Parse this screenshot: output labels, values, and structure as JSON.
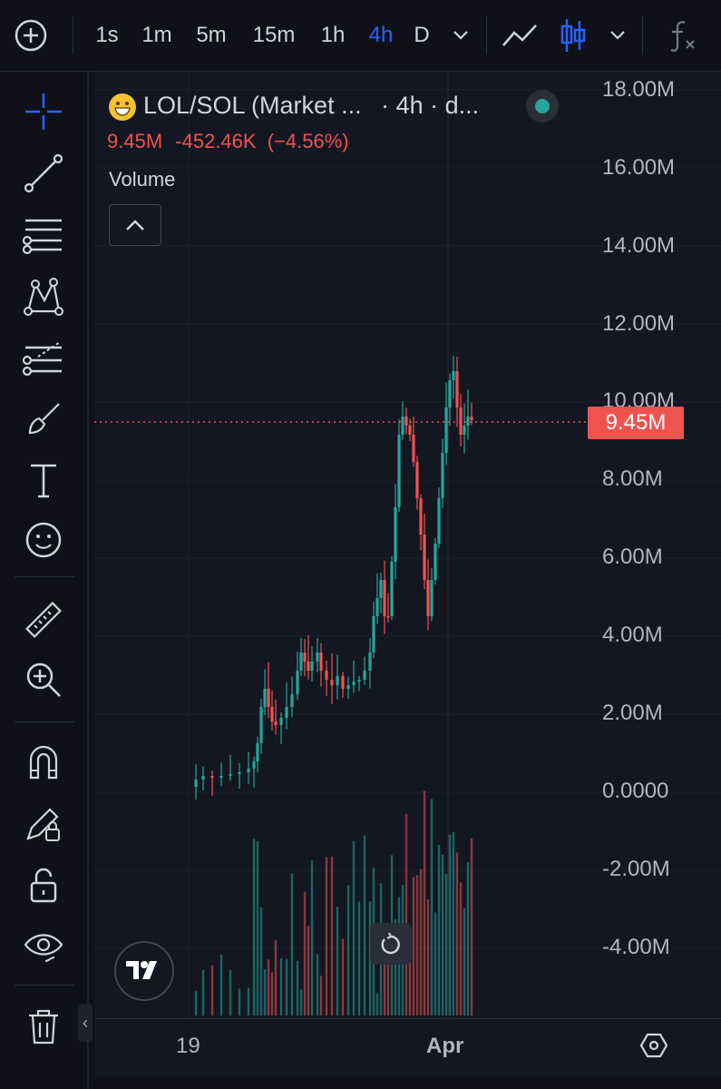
{
  "toolbar": {
    "intervals": [
      "1s",
      "1m",
      "5m",
      "15m",
      "1h",
      "4h",
      "D"
    ],
    "active_interval": "4h"
  },
  "legend": {
    "symbol_title": "LOL/SOL (Market ...",
    "interval_text": "· 4h · d...",
    "last_value": "9.45M",
    "change": "-452.46K",
    "change_pct": "(−4.56%)",
    "volume_label": "Volume",
    "status_color": "#26a69a"
  },
  "price_scale": {
    "labels": [
      "18.00M",
      "16.00M",
      "14.00M",
      "12.00M",
      "10.00M",
      "8.00M",
      "6.00M",
      "4.00M",
      "2.00M",
      "0.0000",
      "-2.00M",
      "-4.00M"
    ],
    "current_price_label": "9.45M"
  },
  "time_axis": {
    "labels": [
      "19",
      "Apr"
    ]
  },
  "colors": {
    "up": "#26a69a",
    "down": "#ef5350",
    "accent": "#2962ff"
  },
  "sidebar_icons": [
    "crosshair-icon",
    "trend-line-icon",
    "fib-retracement-icon",
    "pattern-icon",
    "prediction-icon",
    "brush-icon",
    "text-icon",
    "emoji-icon",
    "ruler-icon",
    "zoom-in-icon",
    "magnet-icon",
    "lock-drawing-icon",
    "unlock-icon",
    "eye-icon",
    "trash-icon"
  ]
}
